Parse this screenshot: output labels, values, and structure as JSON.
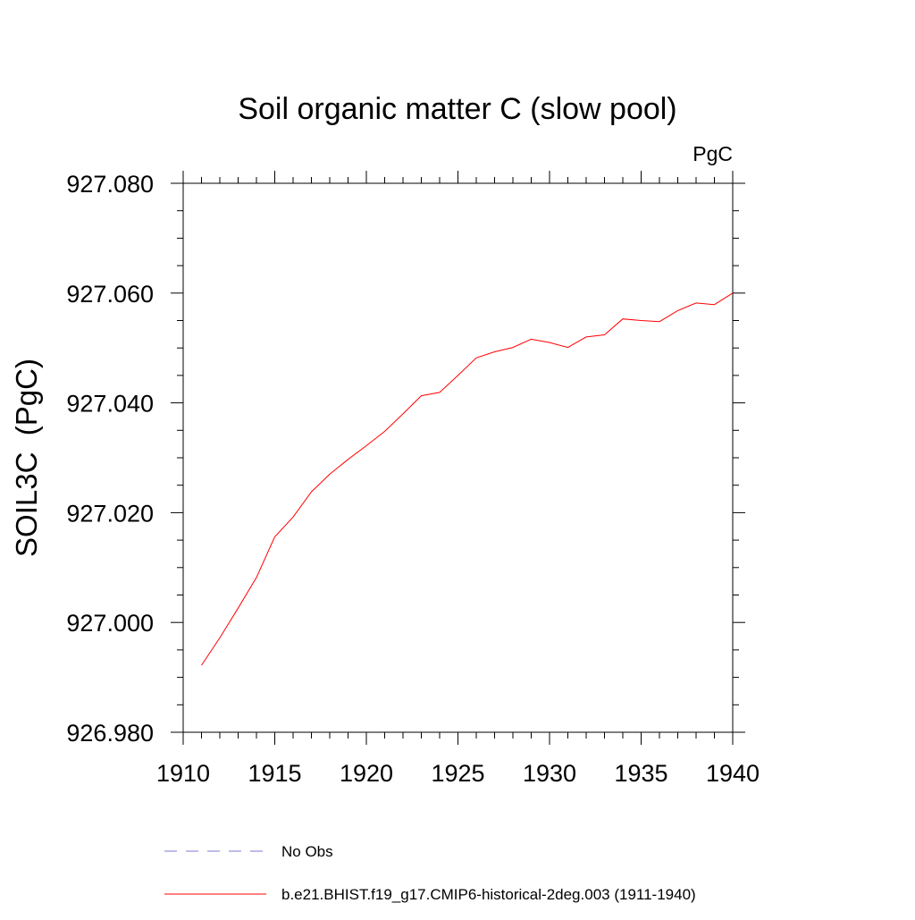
{
  "chart_data": {
    "type": "line",
    "title": "Soil organic matter C (slow pool)",
    "units_label": "PgC",
    "ylabel": "SOIL3C  (PgC)",
    "xlabel": "",
    "xlim": [
      1910,
      1940
    ],
    "ylim": [
      926.98,
      927.08
    ],
    "x_ticks": [
      1910,
      1915,
      1920,
      1925,
      1930,
      1935,
      1940
    ],
    "x_tick_labels": [
      "1910",
      "1915",
      "1920",
      "1925",
      "1930",
      "1935",
      "1940"
    ],
    "y_ticks": [
      926.98,
      927.0,
      927.02,
      927.04,
      927.06,
      927.08
    ],
    "y_tick_labels": [
      "926.980",
      "927.000",
      "927.020",
      "927.040",
      "927.060",
      "927.080"
    ],
    "grid": false,
    "legend_position": "bottom",
    "series": [
      {
        "name": "b.e21.BHIST.f19_g17.CMIP6-historical-2deg.003 (1911-1940)",
        "color": "#ff0000",
        "style": "solid",
        "x": [
          1911,
          1912,
          1913,
          1914,
          1915,
          1916,
          1917,
          1918,
          1919,
          1920,
          1921,
          1922,
          1923,
          1924,
          1925,
          1926,
          1927,
          1928,
          1929,
          1930,
          1931,
          1932,
          1933,
          1934,
          1935,
          1936,
          1937,
          1938,
          1939,
          1940
        ],
        "y": [
          926.9922,
          926.9972,
          927.0026,
          927.0082,
          927.0156,
          927.0192,
          927.0238,
          927.027,
          927.0297,
          927.0322,
          927.0348,
          927.038,
          927.0413,
          927.0419,
          927.045,
          927.0482,
          927.0493,
          927.0501,
          927.0516,
          927.051,
          927.0501,
          927.052,
          927.0524,
          927.0553,
          927.055,
          927.0548,
          927.0568,
          927.0582,
          927.0579,
          927.06
        ]
      },
      {
        "name": "No Obs",
        "color": "#7b7bd4",
        "style": "dashed",
        "x": [],
        "y": []
      }
    ]
  }
}
